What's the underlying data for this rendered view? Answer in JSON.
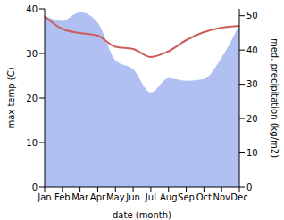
{
  "chart_data": {
    "type": "line",
    "x_label": "date (month)",
    "y_label": "max temp (C)",
    "y2_label": "med. precipitation (kg/m2)",
    "categories": [
      "Jan",
      "Feb",
      "Mar",
      "Apr",
      "May",
      "Jun",
      "Jul",
      "Aug",
      "Sep",
      "Oct",
      "Nov",
      "Dec"
    ],
    "ylim": [
      0,
      40
    ],
    "yticks": [
      0,
      10,
      20,
      30,
      40
    ],
    "y2lim": [
      0,
      52
    ],
    "y2ticks": [
      0,
      10,
      20,
      30,
      40,
      50
    ],
    "grid": false,
    "series": [
      {
        "type": "area",
        "axis": "y2",
        "color": "#b0c0f2",
        "values": [
          50,
          48.5,
          51,
          48,
          37,
          34.4,
          27.6,
          31.8,
          31,
          31.5,
          37.8,
          47.4
        ]
      },
      {
        "type": "line",
        "axis": "y",
        "color": "#cd5c5c",
        "values": [
          38.3,
          35.5,
          34.6,
          34,
          31.5,
          31,
          29.2,
          30.5,
          33,
          34.8,
          35.8,
          36.2
        ]
      }
    ]
  }
}
